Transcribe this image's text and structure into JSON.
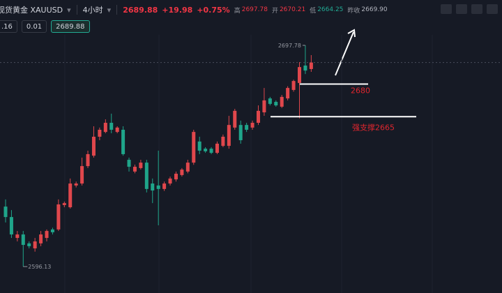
{
  "toolbar": {
    "symbol": "现货黄金 XAUUSD",
    "interval": "4小时",
    "last": "2689.88",
    "change": "+19.98",
    "change_pct": "+0.75%",
    "high_label": "高",
    "high": "2697.78",
    "open_label": "开",
    "open": "2670.21",
    "low_label": "低",
    "low": "2664.25",
    "prev_close_label": "昨收",
    "prev_close": "2669.90"
  },
  "order_bar": {
    "left": ".16",
    "step": "0.01",
    "price": "2689.88"
  },
  "chart_data": {
    "type": "candlestick",
    "up_color": "#e0474c",
    "down_color": "#1fa58a",
    "ylim": [
      2584,
      2709
    ],
    "open": [
      2623.7,
      2618.9,
      2609.3,
      2610.9,
      2606.8,
      2604.5,
      2606.8,
      2609.3,
      2613.2,
      2613.2,
      2624.4,
      2623.4,
      2633.4,
      2634.3,
      2642.3,
      2647.1,
      2655.8,
      2658.0,
      2662.2,
      2658.0,
      2659.0,
      2645.2,
      2639.8,
      2641.4,
      2643.9,
      2634.3,
      2633.4,
      2631.8,
      2634.3,
      2636.2,
      2638.2,
      2639.8,
      2643.9,
      2653.6,
      2650.3,
      2650.3,
      2648.4,
      2651.6,
      2651.6,
      2660.0,
      2661.2,
      2661.2,
      2660.0,
      2662.2,
      2667.0,
      2673.4,
      2671.8,
      2669.6,
      2673.4,
      2677.3,
      2680.5,
      2688.5,
      2686.9
    ],
    "high": [
      2627.0,
      2622.1,
      2612.5,
      2612.5,
      2607.7,
      2609.3,
      2612.5,
      2613.2,
      2614.0,
      2627.0,
      2626.0,
      2636.6,
      2635.2,
      2646.2,
      2649.4,
      2660.6,
      2660.0,
      2663.8,
      2666.4,
      2660.6,
      2660.6,
      2646.2,
      2643.0,
      2645.2,
      2645.2,
      2636.6,
      2649.4,
      2635.2,
      2637.5,
      2639.8,
      2641.4,
      2645.2,
      2659.0,
      2655.8,
      2651.0,
      2651.0,
      2653.6,
      2656.8,
      2665.4,
      2668.6,
      2663.2,
      2662.2,
      2663.2,
      2670.2,
      2678.2,
      2674.1,
      2672.5,
      2675.0,
      2679.0,
      2682.0,
      2690.1,
      2697.78,
      2693.3
    ],
    "low": [
      2616.4,
      2609.3,
      2607.7,
      2596.13,
      2604.5,
      2603.0,
      2605.5,
      2607.7,
      2610.9,
      2612.5,
      2623.4,
      2622.8,
      2632.5,
      2633.4,
      2641.4,
      2646.2,
      2654.2,
      2657.4,
      2657.4,
      2657.4,
      2647.1,
      2639.8,
      2639.0,
      2640.7,
      2630.2,
      2625.3,
      2615.1,
      2630.9,
      2633.4,
      2635.2,
      2637.5,
      2639.0,
      2642.9,
      2647.8,
      2648.4,
      2647.8,
      2647.8,
      2651.0,
      2650.3,
      2659.0,
      2652.6,
      2658.0,
      2659.0,
      2661.2,
      2665.4,
      2670.2,
      2669.6,
      2669.0,
      2672.5,
      2676.5,
      2664.25,
      2684.6,
      2685.6
    ],
    "close": [
      2618.9,
      2610.9,
      2610.9,
      2606.1,
      2605.5,
      2607.7,
      2610.9,
      2612.5,
      2611.9,
      2624.7,
      2625.3,
      2634.3,
      2634.3,
      2642.3,
      2647.8,
      2655.8,
      2659.0,
      2662.2,
      2659.0,
      2660.0,
      2647.8,
      2642.0,
      2642.0,
      2643.9,
      2631.8,
      2631.1,
      2631.8,
      2634.3,
      2636.6,
      2638.8,
      2640.7,
      2643.9,
      2658.0,
      2649.4,
      2649.1,
      2648.4,
      2652.6,
      2655.8,
      2661.2,
      2667.7,
      2654.2,
      2659.0,
      2662.2,
      2667.7,
      2672.5,
      2670.9,
      2670.2,
      2674.1,
      2678.2,
      2681.4,
      2687.8,
      2686.2,
      2689.88
    ],
    "high_label": {
      "value": 2697.78,
      "label": "2697.78"
    },
    "low_label": {
      "value": 2596.13,
      "label": "2596.13"
    },
    "last_price": 2689.88,
    "levels": [
      {
        "value": 2680,
        "label": "2680",
        "color": "#e0262e"
      },
      {
        "value": 2665,
        "label": "强支撑2665",
        "color": "#e0262e"
      }
    ]
  }
}
